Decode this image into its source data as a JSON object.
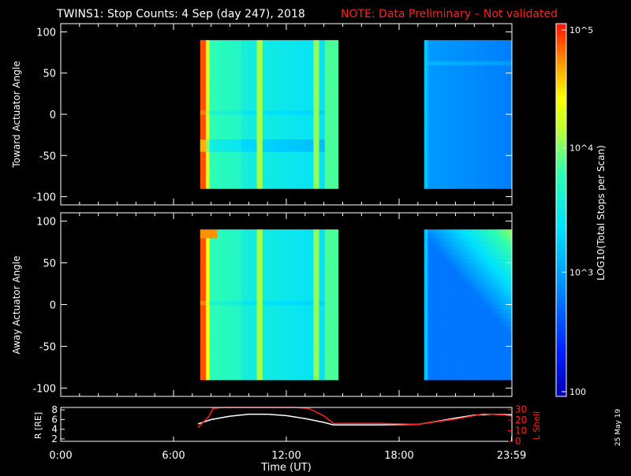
{
  "header": {
    "title": "TWINS1: Stop Counts:  4 Sep (day 247), 2018",
    "note": "NOTE: Data Preliminary – Not validated",
    "note_color": "#ff2020"
  },
  "footer": {
    "xlabel": "Time (UT)",
    "date_stamp": "25 May 19"
  },
  "colorbar": {
    "label": "LOG10(Total Stops per Scan)",
    "ticks": [
      "10^5",
      "10^4",
      "10^3",
      "100"
    ]
  },
  "chart_data": [
    {
      "type": "heatmap",
      "panel": "top",
      "ylabel": "Toward Actuator Angle",
      "ylim": [
        -110,
        110
      ],
      "yticks": [
        100,
        50,
        0,
        -50,
        -100
      ],
      "xlim": [
        "0:00",
        "24:00"
      ],
      "xticks": [
        "0:00",
        "6:00",
        "12:00",
        "18:00",
        "23:59"
      ],
      "color_scale": "log10 counts 100 to 1e5 (rainbow)",
      "data_windows": [
        {
          "start": "7:25",
          "end": "14:45",
          "angle_range": [
            -90,
            90
          ]
        },
        {
          "start": "19:20",
          "end": "23:59",
          "angle_range": [
            -90,
            90
          ]
        }
      ]
    },
    {
      "type": "heatmap",
      "panel": "middle",
      "ylabel": "Away Actuator Angle",
      "ylim": [
        -110,
        110
      ],
      "yticks": [
        100,
        50,
        0,
        -50,
        -100
      ],
      "xlim": [
        "0:00",
        "24:00"
      ],
      "xticks": [
        "0:00",
        "6:00",
        "12:00",
        "18:00",
        "23:59"
      ],
      "color_scale": "log10 counts 100 to 1e5 (rainbow)",
      "data_windows": [
        {
          "start": "7:25",
          "end": "14:45",
          "angle_range": [
            -90,
            90
          ]
        },
        {
          "start": "19:20",
          "end": "23:59",
          "angle_range": [
            -90,
            90
          ]
        }
      ]
    },
    {
      "type": "line",
      "panel": "bottom",
      "ylabel_left": "R [RE]",
      "ylabel_right": "L Shell",
      "yticks_left": [
        2,
        4,
        6,
        8
      ],
      "yticks_right": [
        0,
        10,
        20,
        30
      ],
      "ylim_left": [
        1.5,
        8.5
      ],
      "ylim_right": [
        0,
        32
      ],
      "xticks": [
        "0:00",
        "6:00",
        "12:00",
        "18:00",
        "23:59"
      ],
      "series": [
        {
          "color": "#ffffff",
          "x": [
            7.3,
            8.0,
            9.0,
            10.0,
            11.0,
            12.0,
            13.0,
            14.0,
            14.5,
            15.0,
            17.0,
            19.0,
            20.0,
            21.0,
            22.0,
            23.0,
            23.98
          ],
          "y": [
            5.1,
            6.0,
            6.7,
            7.1,
            7.1,
            6.8,
            6.2,
            5.4,
            4.9,
            4.9,
            4.9,
            5.0,
            5.6,
            6.3,
            6.9,
            7.1,
            7.0
          ]
        },
        {
          "color": "#ff2020",
          "x": [
            7.3,
            7.9,
            8.1,
            8.6,
            12.5,
            13.2,
            14.0,
            14.5,
            17.0,
            19.0,
            21.0,
            22.5,
            23.5,
            23.98
          ],
          "y": [
            13,
            24,
            31,
            34,
            34,
            31,
            24,
            17,
            17,
            16,
            21,
            26,
            25,
            24
          ]
        }
      ]
    }
  ]
}
